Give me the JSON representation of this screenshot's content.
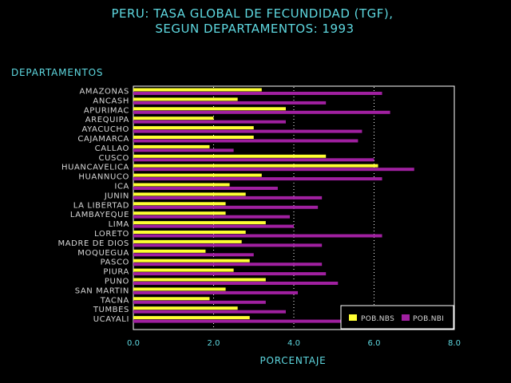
{
  "chart_data": {
    "type": "bar",
    "orientation": "horizontal",
    "title": "PERU: TASA GLOBAL DE FECUNDIDAD (TGF),",
    "subtitle": "SEGUN DEPARTAMENTOS: 1993",
    "ylabel": "DEPARTAMENTOS",
    "xlabel": "PORCENTAJE",
    "xlim": [
      0,
      8
    ],
    "xticks": [
      "0.0",
      "2.0",
      "4.0",
      "6.0",
      "8.0"
    ],
    "xtick_values": [
      0,
      2,
      4,
      6,
      8
    ],
    "grid": "vertical-dotted",
    "legend_position": "bottom-right",
    "categories": [
      "AMAZONAS",
      "ANCASH",
      "APURIMAC",
      "AREQUIPA",
      "AYACUCHO",
      "CAJAMARCA",
      "CALLAO",
      "CUSCO",
      "HUANCAVELICA",
      "HUANNUCO",
      "ICA",
      "JUNIN",
      "LA LIBERTAD",
      "LAMBAYEQUE",
      "LIMA",
      "LORETO",
      "MADRE DE DIOS",
      "MOQUEGUA",
      "PASCO",
      "PIURA",
      "PUNO",
      "SAN MARTIN",
      "TACNA",
      "TUMBES",
      "UCAYALI"
    ],
    "series": [
      {
        "name": "POB.NBS",
        "color": "#ffff33",
        "values": [
          3.2,
          2.6,
          3.8,
          2.0,
          3.0,
          3.0,
          1.9,
          4.8,
          6.1,
          3.2,
          2.4,
          2.8,
          2.3,
          2.3,
          3.3,
          2.8,
          2.7,
          1.8,
          2.9,
          2.5,
          3.3,
          2.3,
          1.9,
          2.6,
          2.9
        ]
      },
      {
        "name": "POB.NBI",
        "color": "#a020a0",
        "values": [
          6.2,
          4.8,
          6.4,
          3.8,
          5.7,
          5.6,
          2.5,
          6.0,
          7.0,
          6.2,
          3.6,
          4.7,
          4.6,
          3.9,
          4.0,
          6.2,
          4.7,
          3.0,
          4.7,
          4.8,
          5.1,
          4.1,
          3.3,
          3.8,
          5.2
        ]
      }
    ]
  }
}
